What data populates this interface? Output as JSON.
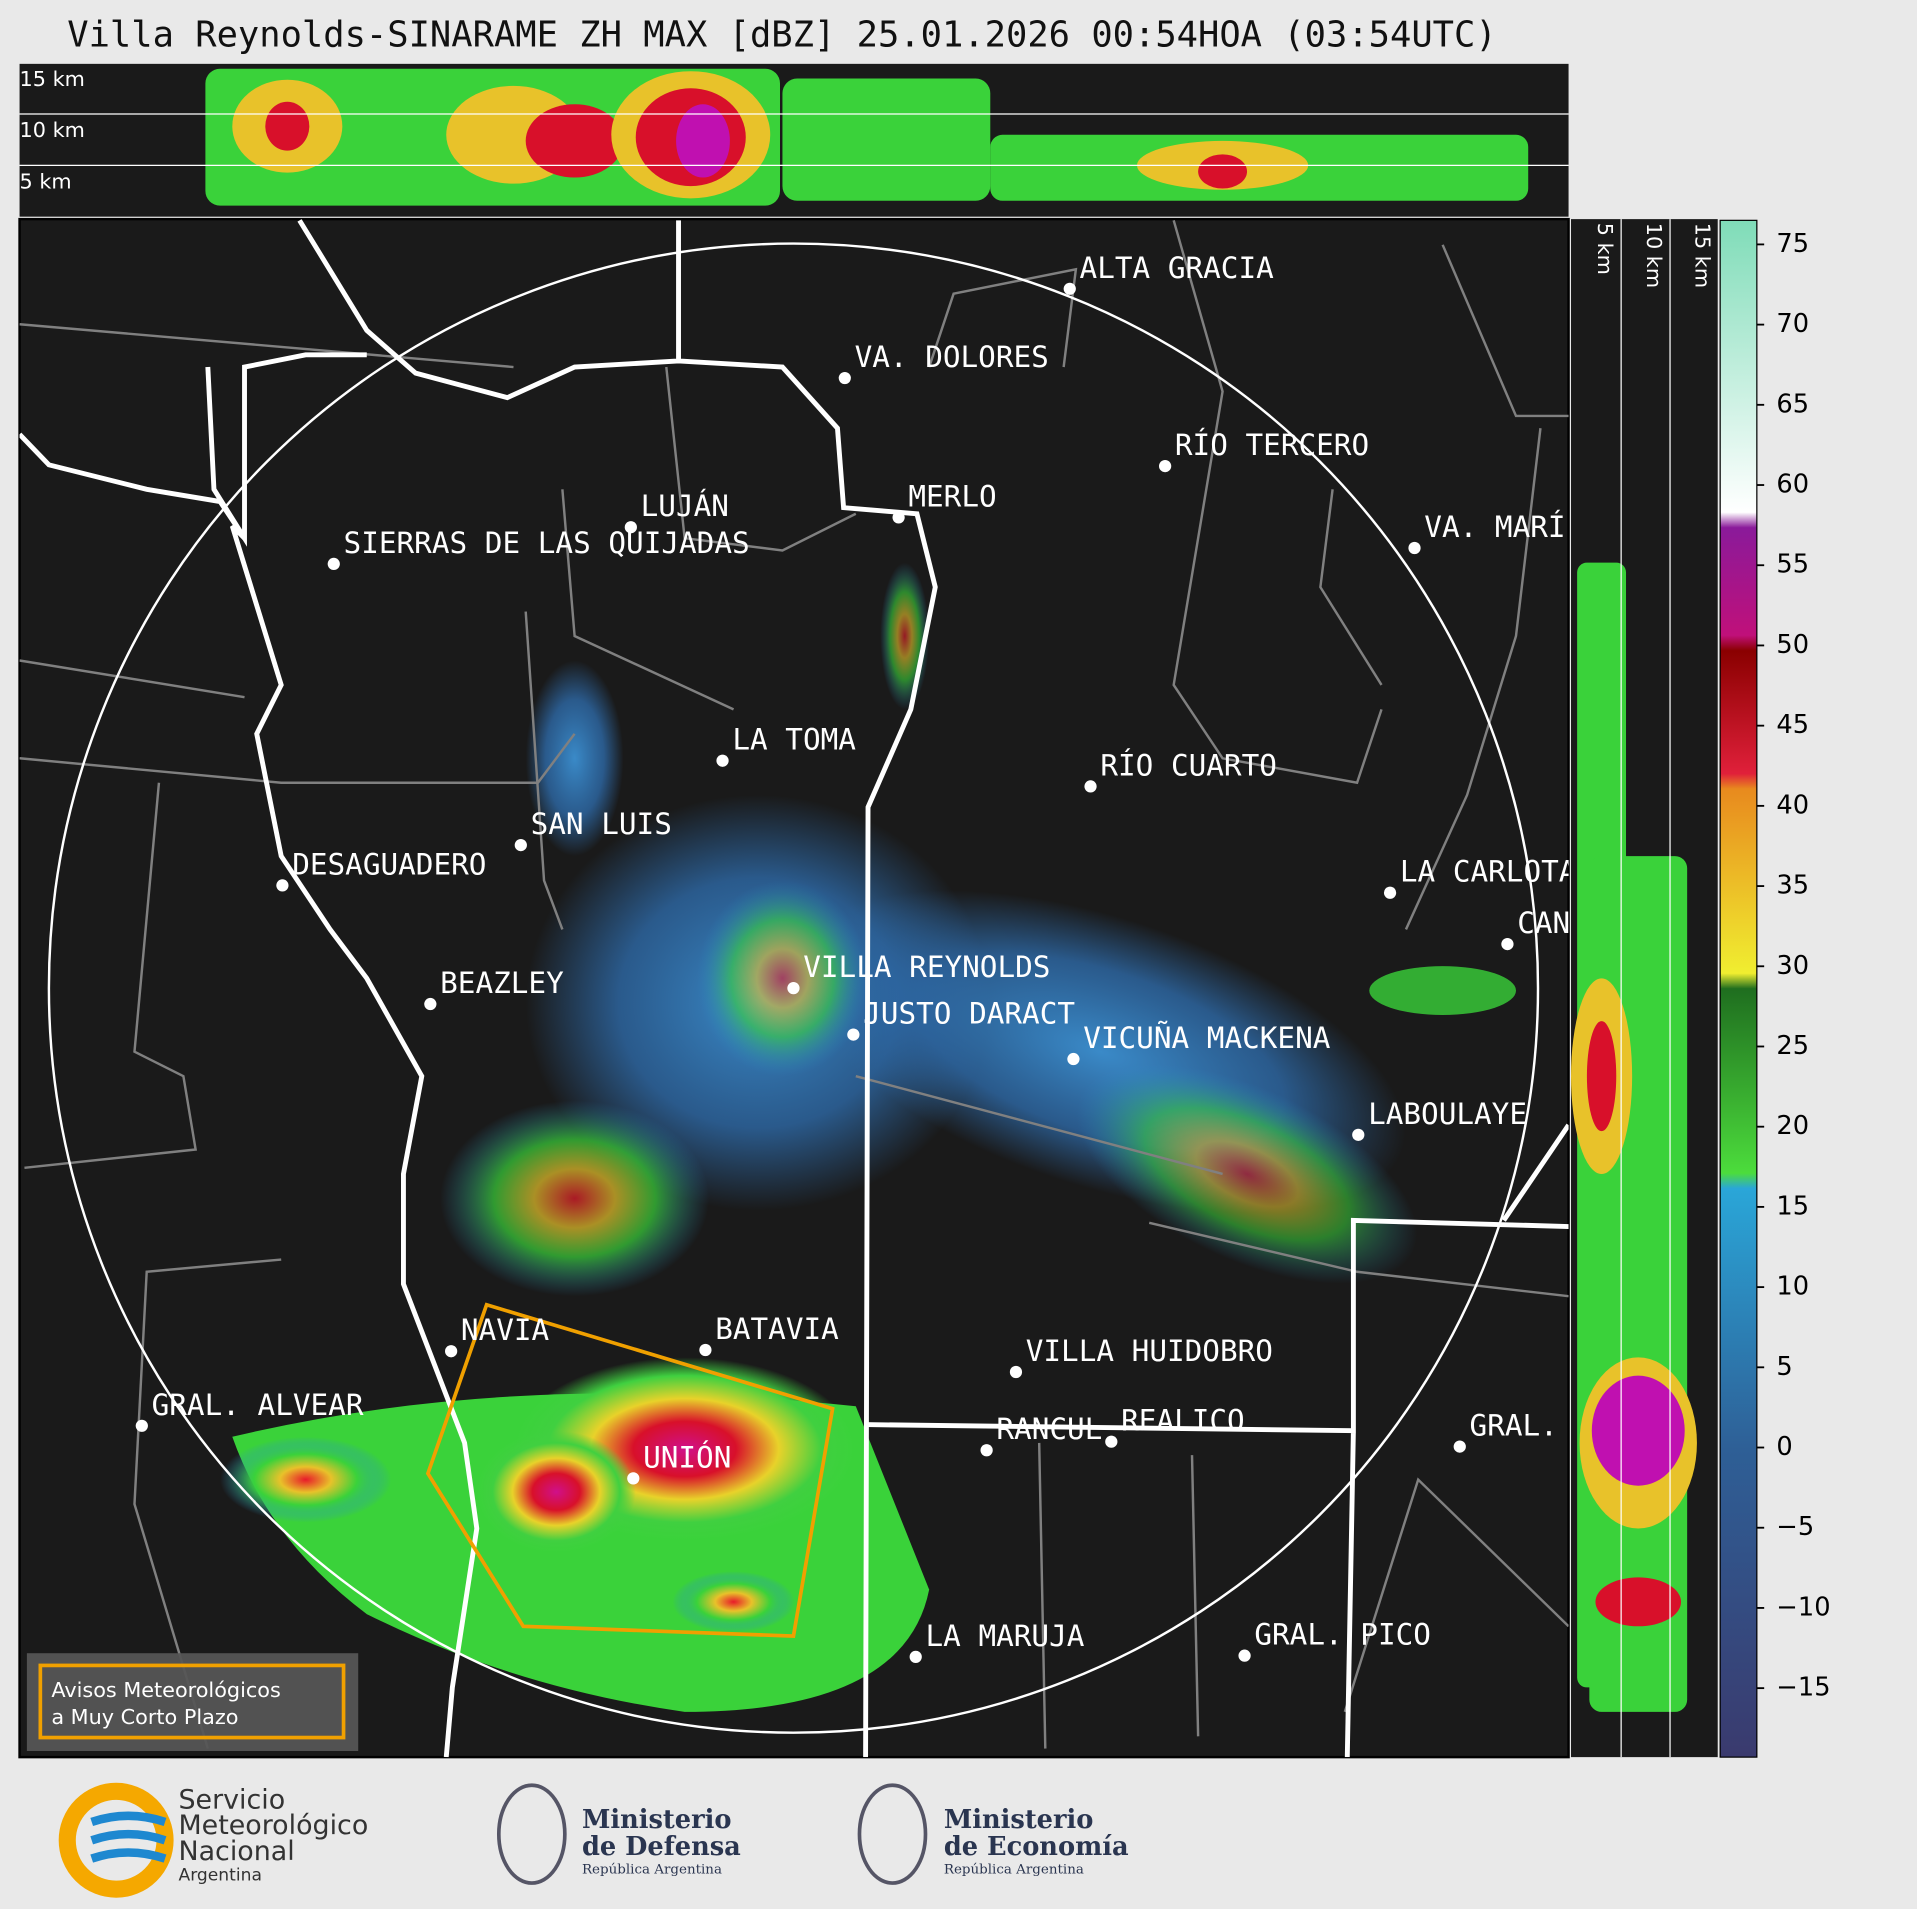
{
  "title": "Villa Reynolds-SINARAME ZH MAX [dBZ] 25.01.2026 00:54HOA (03:54UTC)",
  "cross_section_labels": [
    "15 km",
    "10 km",
    "5 km"
  ],
  "side_labels": [
    "5 km",
    "10 km",
    "15 km"
  ],
  "cities": [
    "ALTA GRACIA",
    "VA. DOLORES",
    "RÍO TERCERO",
    "LUJÁN",
    "MERLO",
    "SIERRAS DE LAS QUIJADAS",
    "VA. MARÍ",
    "LA TOMA",
    "RÍO CUARTO",
    "SAN LUIS",
    "DESAGUADERO",
    "LA CARLOTA",
    "CAN",
    "VILLA REYNOLDS",
    "JUSTO DARACT",
    "BEAZLEY",
    "VICUÑA MACKENA",
    "LABOULAYE",
    "NAVIA",
    "BATAVIA",
    "VILLA HUIDOBRO",
    "GRAL. ALVEAR",
    "RANCUL",
    "REALICO",
    "GRAL.",
    "UNIÓN",
    "LA MARUJA",
    "GRAL. PICO"
  ],
  "colorbar": {
    "lim": [
      -19.3,
      76.5
    ],
    "ticks": [
      75,
      70,
      65,
      60,
      55,
      50,
      45,
      40,
      35,
      30,
      25,
      20,
      15,
      10,
      5,
      0,
      {
        "value": -5,
        "label": "−5"
      },
      {
        "value": -10,
        "label": "−10"
      },
      {
        "value": -15,
        "label": "−15"
      }
    ]
  },
  "warning_box": [
    "Avisos Meteorológicos",
    "a Muy Corto Plazo"
  ],
  "footer": {
    "smn": [
      "Servicio",
      "Meteorológico",
      "Nacional",
      "Argentina"
    ],
    "defensa": [
      "Ministerio",
      "de Defensa",
      "República Argentina"
    ],
    "economia": [
      "Ministerio",
      "de Economía",
      "República Argentina"
    ]
  }
}
